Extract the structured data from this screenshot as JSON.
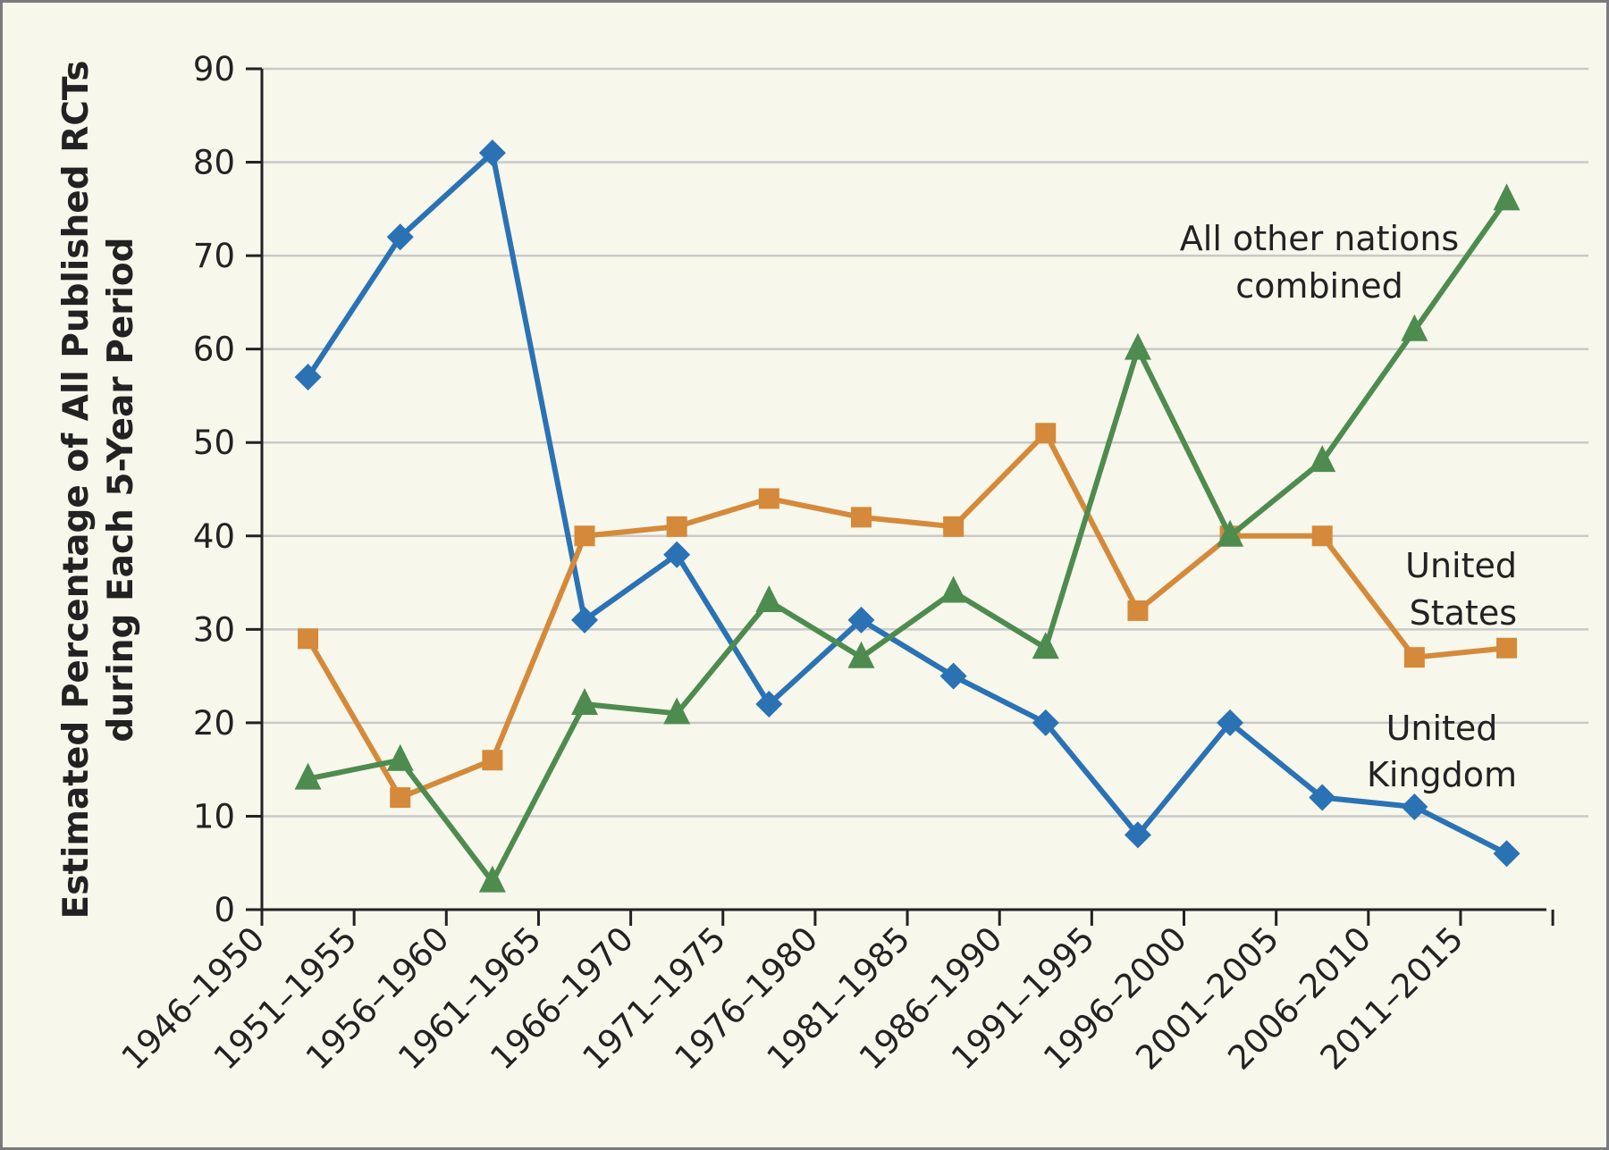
{
  "chart_data": {
    "type": "line",
    "ylabel": [
      "Estimated Percentage of All Published RCTs",
      "during Each 5-Year Period"
    ],
    "xlabel": "",
    "ylim": [
      0,
      90
    ],
    "yticks": [
      0,
      10,
      20,
      30,
      40,
      50,
      60,
      70,
      80,
      90
    ],
    "grid": "horizontal",
    "categories": [
      "1946–1950",
      "1951–1955",
      "1956–1960",
      "1961–1965",
      "1966–1970",
      "1971–1975",
      "1976–1980",
      "1981–1985",
      "1986–1990",
      "1991–1995",
      "1996–2000",
      "2001–2005",
      "2006–2010",
      "2011–2015"
    ],
    "series": [
      {
        "name": "United Kingdom",
        "label_lines": [
          "United",
          "Kingdom"
        ],
        "color": "#2a72b4",
        "marker": "diamond",
        "values": [
          57,
          72,
          81,
          31,
          38,
          22,
          31,
          25,
          20,
          8,
          20,
          12,
          11,
          6
        ]
      },
      {
        "name": "United States",
        "label_lines": [
          "United",
          "States"
        ],
        "color": "#d48a3a",
        "marker": "square",
        "values": [
          29,
          12,
          16,
          40,
          41,
          44,
          42,
          41,
          51,
          32,
          40,
          40,
          27,
          28
        ]
      },
      {
        "name": "All other nations combined",
        "label_lines": [
          "All other nations",
          "combined"
        ],
        "color": "#4e8b4f",
        "marker": "triangle",
        "values": [
          14,
          16,
          3,
          22,
          21,
          33,
          27,
          34,
          28,
          60,
          40,
          48,
          62,
          76
        ]
      }
    ]
  }
}
